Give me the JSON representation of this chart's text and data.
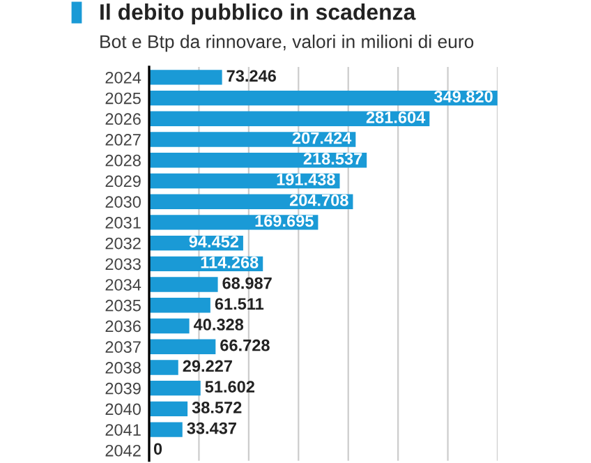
{
  "chart_data": {
    "type": "bar",
    "orientation": "horizontal",
    "title": "Il debito pubblico in scadenza",
    "subtitle": "Bot e Btp da rinnovare, valori in milioni di euro",
    "categories": [
      "2024",
      "2025",
      "2026",
      "2027",
      "2028",
      "2029",
      "2030",
      "2031",
      "2032",
      "2033",
      "2034",
      "2035",
      "2036",
      "2037",
      "2038",
      "2039",
      "2040",
      "2041",
      "2042"
    ],
    "values": [
      73246,
      349820,
      281604,
      207424,
      218537,
      191438,
      204708,
      169695,
      94452,
      114268,
      68987,
      61511,
      40328,
      66728,
      29227,
      51602,
      38572,
      33437,
      0
    ],
    "value_labels": [
      "73.246",
      "349.820",
      "281.604",
      "207.424",
      "218.537",
      "191.438",
      "204.708",
      "169.695",
      "94.452",
      "114.268",
      "68.987",
      "61.511",
      "40.328",
      "66.728",
      "29.227",
      "51.602",
      "38.572",
      "33.437",
      "0"
    ],
    "color": "#1a9ad6",
    "xlim": [
      0,
      350000
    ],
    "xticks": [
      {
        "value": 0,
        "label": null
      },
      {
        "value": 50000,
        "label": null
      },
      {
        "value": 100000,
        "label": null
      },
      {
        "value": 150000,
        "label": null
      },
      {
        "value": 200000,
        "label": null
      },
      {
        "value": 250000,
        "label": null
      },
      {
        "value": 300000,
        "label": null
      },
      {
        "value": 350000,
        "label": null
      }
    ],
    "grid": "x",
    "tick_labels": "y"
  }
}
